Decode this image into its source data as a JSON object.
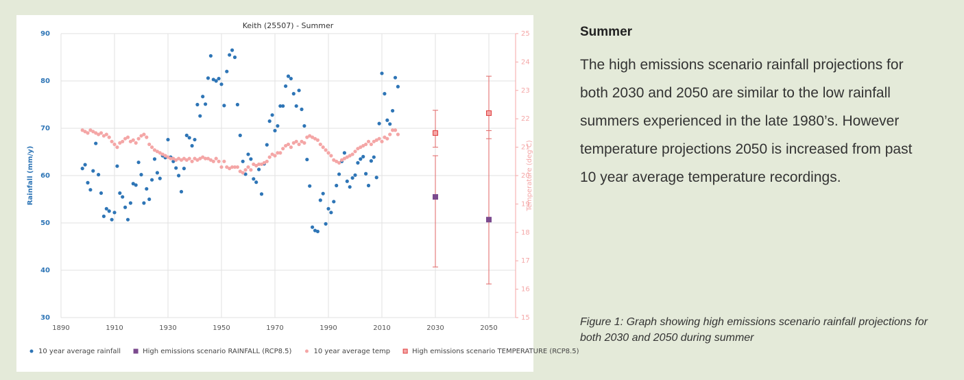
{
  "chart_data": {
    "type": "scatter",
    "title": "Keith (25507) - Summer",
    "y_label": "Rainfall (mm/y)",
    "y2_label": "Temperature (deg C)",
    "xlim": [
      1890,
      2060
    ],
    "xticks": [
      1890,
      1910,
      1930,
      1950,
      1970,
      1990,
      2010,
      2030,
      2050
    ],
    "ylim": [
      30,
      90
    ],
    "yticks": [
      30,
      40,
      50,
      60,
      70,
      80,
      90
    ],
    "y2lim": [
      15,
      25
    ],
    "y2ticks": [
      15,
      16,
      17,
      18,
      19,
      20,
      21,
      22,
      23,
      24,
      25
    ],
    "grid": true,
    "legend": "bottom",
    "error_color": "#e06666",
    "x": [
      1898,
      1899,
      1900,
      1901,
      1902,
      1903,
      1904,
      1905,
      1906,
      1907,
      1908,
      1909,
      1910,
      1911,
      1912,
      1913,
      1914,
      1915,
      1916,
      1917,
      1918,
      1919,
      1920,
      1921,
      1922,
      1923,
      1924,
      1925,
      1926,
      1927,
      1928,
      1929,
      1930,
      1931,
      1932,
      1933,
      1934,
      1935,
      1936,
      1937,
      1938,
      1939,
      1940,
      1941,
      1942,
      1943,
      1944,
      1945,
      1946,
      1947,
      1948,
      1949,
      1950,
      1951,
      1952,
      1953,
      1954,
      1955,
      1956,
      1957,
      1958,
      1959,
      1960,
      1961,
      1962,
      1963,
      1964,
      1965,
      1966,
      1967,
      1968,
      1969,
      1970,
      1971,
      1972,
      1973,
      1974,
      1975,
      1976,
      1977,
      1978,
      1979,
      1980,
      1981,
      1982,
      1983,
      1984,
      1985,
      1986,
      1987,
      1988,
      1989,
      1990,
      1991,
      1992,
      1993,
      1994,
      1995,
      1996,
      1997,
      1998,
      1999,
      2000,
      2001,
      2002,
      2003,
      2004,
      2005,
      2006,
      2007,
      2008,
      2009,
      2010,
      2011,
      2012,
      2013,
      2014,
      2015,
      2016
    ],
    "series": [
      {
        "name": "10 year average rainfall",
        "color": "#2e75b6",
        "marker": "circle",
        "values": [
          61.5,
          62.3,
          58.5,
          57,
          61,
          66.8,
          60.2,
          56.3,
          51.4,
          53,
          52.5,
          50.7,
          52.2,
          62,
          56.3,
          55.5,
          53.3,
          50.7,
          54.2,
          58.3,
          58,
          62.8,
          60.2,
          54.2,
          57.2,
          55,
          59.1,
          63.5,
          60.6,
          59.4,
          64.2,
          63.8,
          67.6,
          63.9,
          63,
          61.6,
          60,
          56.6,
          61.5,
          68.5,
          68,
          66.3,
          67.6,
          75,
          72.6,
          76.7,
          75.1,
          80.6,
          85.3,
          80.3,
          80,
          80.5,
          79.3,
          74.8,
          82,
          85.5,
          86.5,
          85,
          75,
          68.5,
          63,
          60.3,
          64.5,
          63.5,
          59.3,
          58.6,
          61.3,
          56.1,
          62.5,
          66.5,
          71.5,
          72.8,
          69.5,
          70.5,
          74.7,
          74.7,
          78.9,
          81,
          80.5,
          77.3,
          74.7,
          78,
          74,
          70.5,
          63.4,
          57.8,
          49.1,
          48.4,
          48.2,
          54.8,
          56.2,
          49.8,
          53,
          52.2,
          54.5,
          57.9,
          60.3,
          63,
          64.8,
          58.8,
          57.6,
          59.5,
          60.1,
          62.7,
          63.5,
          64,
          60.4,
          57.9,
          63.1,
          63.9,
          59.6,
          71,
          81.6,
          77.3,
          71.7,
          70.9,
          73.7,
          80.7,
          78.8
        ]
      },
      {
        "name": "High emissions scenario RAINFALL (RCP8.5)",
        "color": "#7b4a8e",
        "marker": "square",
        "x": [
          2030,
          2050
        ],
        "values": [
          55.5,
          50.7
        ],
        "low": [
          40.7,
          37.1
        ],
        "high": [
          64.2,
          69.5
        ]
      },
      {
        "name": "10 year average temp",
        "color": "#f4a6a6",
        "marker": "circle",
        "axis": "y2",
        "values": [
          21.6,
          21.55,
          21.5,
          21.6,
          21.55,
          21.5,
          21.45,
          21.5,
          21.4,
          21.45,
          21.35,
          21.2,
          21.1,
          21.0,
          21.15,
          21.2,
          21.3,
          21.35,
          21.2,
          21.25,
          21.15,
          21.3,
          21.4,
          21.45,
          21.35,
          21.1,
          21.0,
          20.9,
          20.85,
          20.8,
          20.75,
          20.7,
          20.65,
          20.6,
          20.6,
          20.55,
          20.6,
          20.55,
          20.6,
          20.55,
          20.6,
          20.5,
          20.6,
          20.55,
          20.6,
          20.65,
          20.6,
          20.6,
          20.55,
          20.5,
          20.6,
          20.5,
          20.3,
          20.5,
          20.3,
          20.25,
          20.3,
          20.3,
          20.3,
          20.15,
          20.1,
          20.2,
          20.3,
          20.2,
          20.4,
          20.35,
          20.4,
          20.4,
          20.45,
          20.5,
          20.65,
          20.75,
          20.7,
          20.8,
          20.8,
          20.95,
          21.05,
          21.1,
          21.0,
          21.15,
          21.2,
          21.1,
          21.2,
          21.15,
          21.35,
          21.4,
          21.35,
          21.3,
          21.25,
          21.1,
          21.0,
          20.9,
          20.8,
          20.7,
          20.55,
          20.5,
          20.45,
          20.55,
          20.6,
          20.65,
          20.7,
          20.75,
          20.85,
          20.95,
          21.0,
          21.05,
          21.1,
          21.2,
          21.1,
          21.2,
          21.25,
          21.3,
          21.2,
          21.35,
          21.3,
          21.45,
          21.6,
          21.6,
          21.45
        ]
      },
      {
        "name": "High emissions scenario TEMPERATURE (RCP8.5)",
        "color": "#f4a6a6",
        "stroke": "#e03c3c",
        "marker": "square",
        "axis": "y2",
        "x": [
          2030,
          2050
        ],
        "values": [
          21.5,
          22.2
        ],
        "low": [
          21.0,
          21.3
        ],
        "high": [
          22.3,
          23.5
        ]
      }
    ]
  },
  "article": {
    "heading": "Summer",
    "body": "The high emissions scenario rainfall projections for both 2030 and 2050 are similar to the low rainfall summers experienced in the late 1980’s. However temperature projections 2050 is increased from past 10 year average temperature recordings.",
    "caption": "Figure 1: Graph showing high emissions scenario rainfall projections for both 2030 and 2050 during summer"
  }
}
